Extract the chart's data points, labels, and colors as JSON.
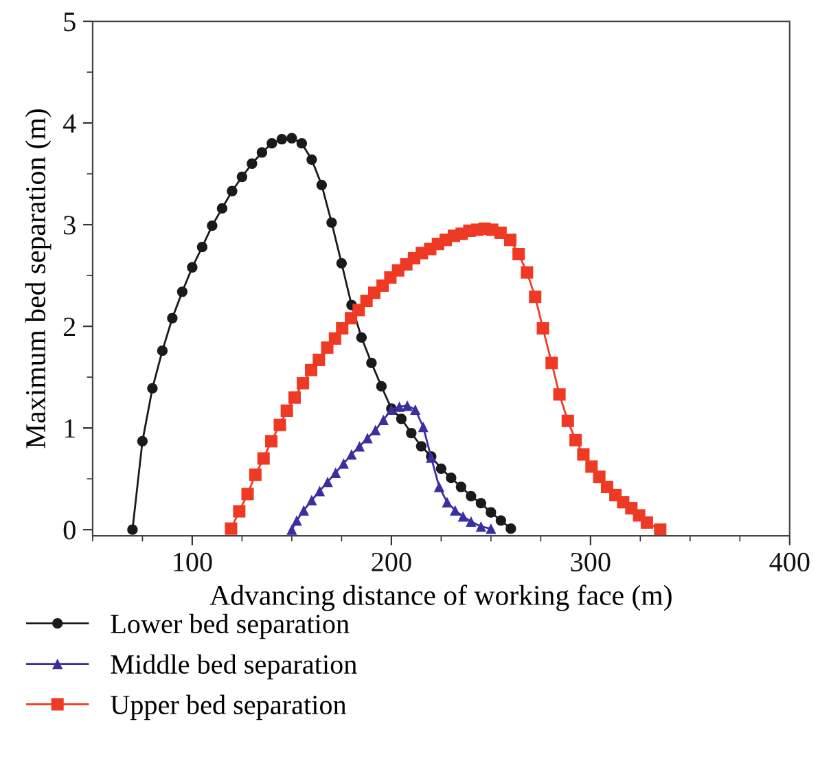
{
  "chart_data": {
    "type": "line",
    "xlabel": "Advancing distance of working face (m)",
    "ylabel": "Maximum bed separation (m)",
    "xlim": [
      50,
      400
    ],
    "xticks": [
      100,
      200,
      300,
      400
    ],
    "ylim": [
      -0.06,
      5
    ],
    "yticks": [
      0,
      1,
      2,
      3,
      4,
      5
    ],
    "grid": false,
    "legend": "bottom left",
    "line_style": "solid",
    "series": [
      {
        "name": "Lower bed separation",
        "color": "#1a1a1a",
        "marker": "circle",
        "x": [
          70,
          75,
          80,
          85,
          90,
          95,
          100,
          105,
          110,
          115,
          120,
          125,
          130,
          135,
          140,
          145,
          150,
          155,
          160,
          165,
          170,
          175,
          180,
          185,
          190,
          195,
          200,
          205,
          210,
          215,
          220,
          225,
          230,
          235,
          240,
          245,
          250,
          255,
          260
        ],
        "values": [
          0,
          0.87,
          1.39,
          1.76,
          2.08,
          2.34,
          2.58,
          2.78,
          2.99,
          3.16,
          3.33,
          3.47,
          3.6,
          3.71,
          3.8,
          3.84,
          3.85,
          3.8,
          3.64,
          3.39,
          3.02,
          2.62,
          2.21,
          1.89,
          1.64,
          1.41,
          1.19,
          1.09,
          0.95,
          0.82,
          0.72,
          0.6,
          0.51,
          0.42,
          0.33,
          0.26,
          0.17,
          0.09,
          0.01
        ]
      },
      {
        "name": "Middle bed separation",
        "color": "#3a2fa0",
        "marker": "triangle",
        "x": [
          150,
          152.5,
          156,
          160,
          164,
          168,
          172,
          176,
          180,
          184,
          188,
          192,
          196,
          200,
          204,
          208,
          212,
          216,
          220,
          224,
          228,
          232,
          236,
          240,
          245,
          250
        ],
        "values": [
          0,
          0.09,
          0.19,
          0.29,
          0.38,
          0.47,
          0.56,
          0.65,
          0.74,
          0.82,
          0.9,
          0.98,
          1.08,
          1.18,
          1.21,
          1.22,
          1.18,
          1.01,
          0.71,
          0.42,
          0.27,
          0.19,
          0.13,
          0.08,
          0.03,
          0.01
        ]
      },
      {
        "name": "Upper bed separation",
        "color": "#ee3a24",
        "marker": "square",
        "x": [
          119.5,
          123.6,
          127.8,
          131.7,
          135.8,
          139.7,
          144,
          147.5,
          151.4,
          155.6,
          159.7,
          163.6,
          167.8,
          171.7,
          175.3,
          179.7,
          183.6,
          187.5,
          191.4,
          195.6,
          199.5,
          203.4,
          207.5,
          211.4,
          215.3,
          219.5,
          223.4,
          227.3,
          231.4,
          235.3,
          239.2,
          243.1,
          246.8,
          250.6,
          254.8,
          259.7,
          263.9,
          268.1,
          272.2,
          276.1,
          280.5,
          284.4,
          288.6,
          292.5,
          296.4,
          300.5,
          304.4,
          308.3,
          312.5,
          316.4,
          320.5,
          324.4,
          328.3,
          335
        ],
        "values": [
          0.01,
          0.18,
          0.35,
          0.54,
          0.7,
          0.87,
          1.03,
          1.17,
          1.3,
          1.44,
          1.57,
          1.67,
          1.79,
          1.88,
          1.98,
          2.08,
          2.16,
          2.25,
          2.33,
          2.4,
          2.48,
          2.55,
          2.61,
          2.67,
          2.72,
          2.76,
          2.81,
          2.85,
          2.89,
          2.91,
          2.94,
          2.95,
          2.96,
          2.95,
          2.92,
          2.85,
          2.71,
          2.53,
          2.29,
          1.98,
          1.64,
          1.33,
          1.07,
          0.88,
          0.74,
          0.62,
          0.52,
          0.42,
          0.34,
          0.27,
          0.21,
          0.14,
          0.07,
          0.0
        ]
      }
    ]
  }
}
